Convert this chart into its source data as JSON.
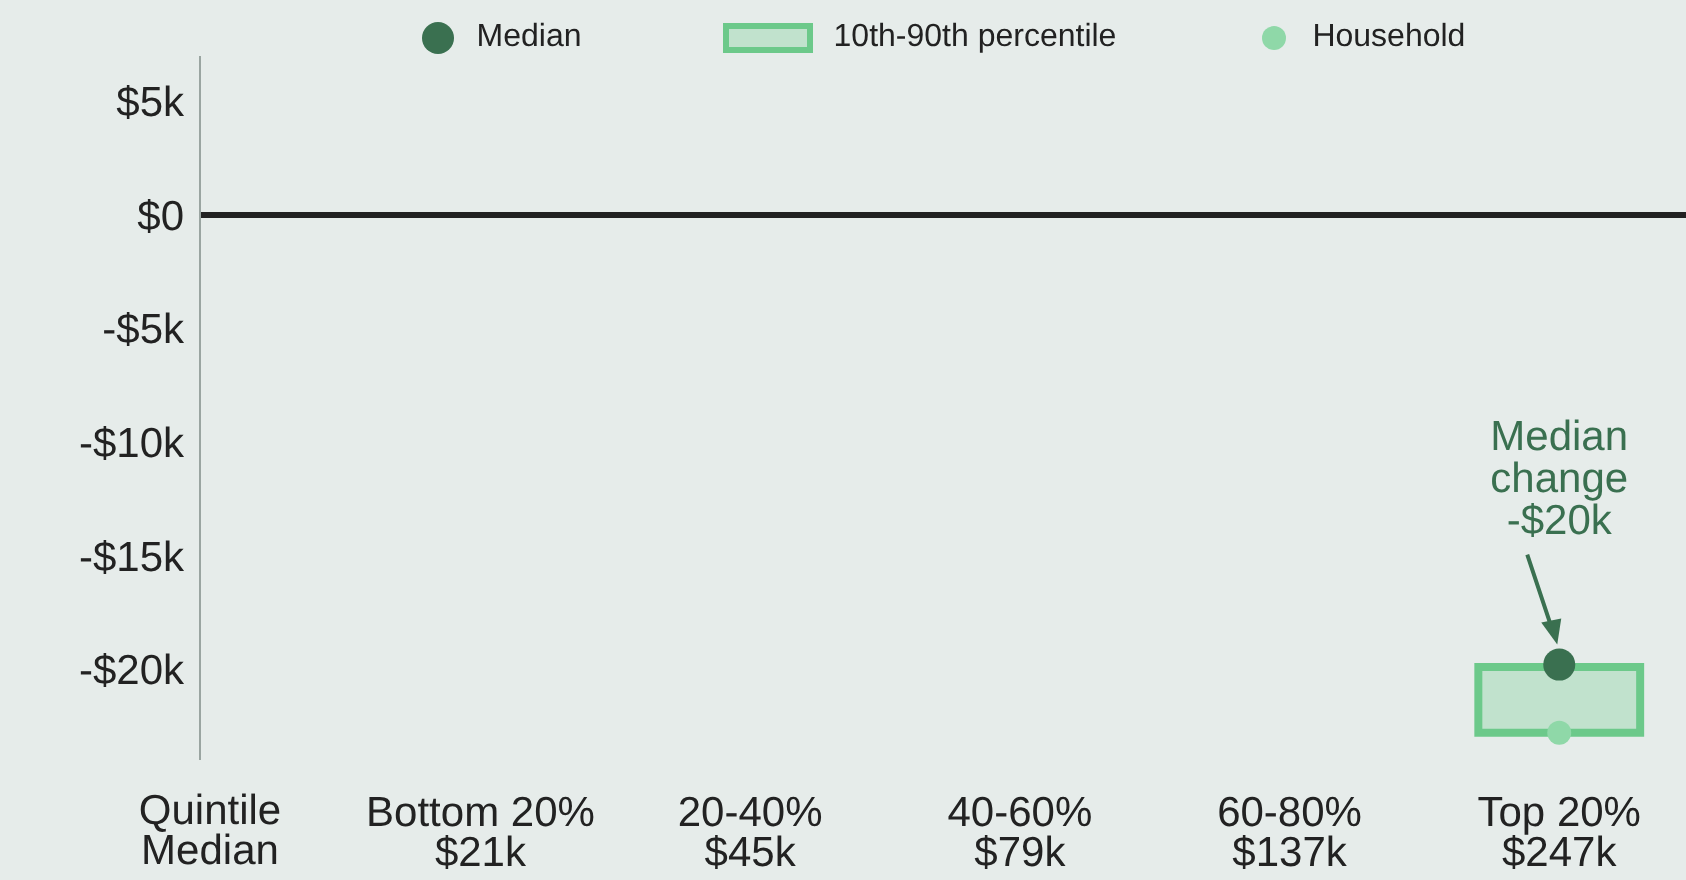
{
  "chart_data": {
    "type": "box",
    "categories": [
      "Bottom 20%\n$21k",
      "20-40%\n$45k",
      "40-60%\n$79k",
      "60-80%\n$137k",
      "Top 20%\n$247k"
    ],
    "xlabel": "Quintile\nMedian",
    "series": [
      {
        "name": "Median",
        "type": "scatter",
        "color": "#3a7050",
        "x": [
          "Top 20%\n$247k"
        ],
        "values": [
          -19800
        ]
      },
      {
        "name": "10th-90th percentile",
        "type": "box",
        "color": "#6cc98a",
        "boxes": [
          null,
          null,
          null,
          null,
          {
            "low": -22800,
            "q1": -22800,
            "median": -19800,
            "q3": -19900,
            "high": -19900
          }
        ]
      },
      {
        "name": "Household",
        "type": "scatter",
        "color": "#8fd8a8",
        "x": [
          "Top 20%\n$247k"
        ],
        "values": [
          -22800
        ]
      }
    ],
    "ylim": [
      -24000,
      7000
    ],
    "yticks": [
      {
        "value": 5000,
        "label": "$5k"
      },
      {
        "value": 0,
        "label": "$0"
      },
      {
        "value": -5000,
        "label": "-$5k"
      },
      {
        "value": -10000,
        "label": "-$10k"
      },
      {
        "value": -15000,
        "label": "-$15k"
      },
      {
        "value": -20000,
        "label": "-$20k"
      }
    ],
    "ref_lines": [
      {
        "axis": "y",
        "value": 0,
        "label": null,
        "color": "#222222"
      }
    ],
    "annotations": [
      {
        "text": "Median change -$20k",
        "x": "Top 20%\n$247k",
        "y": -19800
      }
    ],
    "grid": false,
    "legend": "top"
  }
}
